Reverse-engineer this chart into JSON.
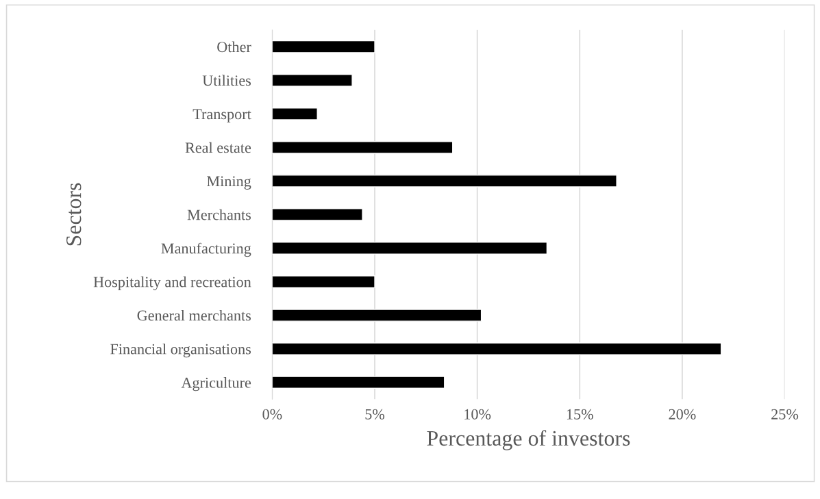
{
  "chart_data": {
    "type": "bar",
    "orientation": "horizontal",
    "xlabel": "Percentage of investors",
    "ylabel": "Sectors",
    "categories": [
      "Other",
      "Utilities",
      "Transport",
      "Real estate",
      "Mining",
      "Merchants",
      "Manufacturing",
      "Hospitality and recreation",
      "General merchants",
      "Financial organisations",
      "Agriculture"
    ],
    "values": [
      5.0,
      3.9,
      2.2,
      8.8,
      16.8,
      4.4,
      13.4,
      5.0,
      10.2,
      21.9,
      8.4
    ],
    "color": "#000000",
    "xlim": [
      0,
      25
    ],
    "xticks": [
      {
        "value": 0,
        "label": "0%"
      },
      {
        "value": 5,
        "label": "5%"
      },
      {
        "value": 10,
        "label": "10%"
      },
      {
        "value": 15,
        "label": "15%"
      },
      {
        "value": 20,
        "label": "20%"
      },
      {
        "value": 25,
        "label": "25%"
      }
    ],
    "grid": "x",
    "legend": false
  }
}
